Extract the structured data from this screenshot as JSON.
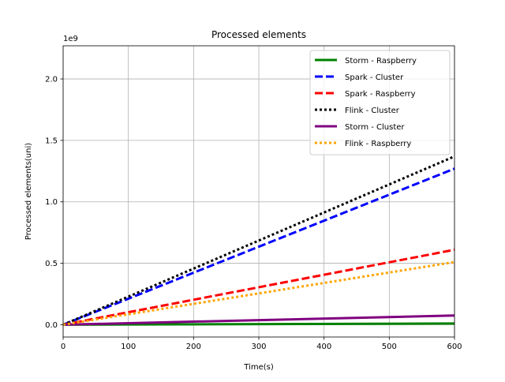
{
  "chart_data": {
    "type": "line",
    "title": "Processed elements",
    "xlabel": "Time(s)",
    "ylabel": "Processed elements(uni)",
    "y_offset_label": "1e9",
    "xlim": [
      0,
      600
    ],
    "ylim": [
      -0.1,
      2.27
    ],
    "xticks": [
      0,
      100,
      200,
      300,
      400,
      500,
      600
    ],
    "yticks": [
      0.0,
      0.5,
      1.0,
      1.5,
      2.0
    ],
    "xtick_labels": [
      "0",
      "100",
      "200",
      "300",
      "400",
      "500",
      "600"
    ],
    "ytick_labels": [
      "0.0",
      "0.5",
      "1.0",
      "1.5",
      "2.0"
    ],
    "grid": true,
    "legend_position": "top-right",
    "series": [
      {
        "name": "Storm - Raspberry",
        "color": "#008000",
        "style": "solid",
        "x": [
          0,
          600
        ],
        "y": [
          0.0,
          0.01
        ]
      },
      {
        "name": "Spark - Cluster",
        "color": "#0000ff",
        "style": "dashed",
        "x": [
          0,
          600
        ],
        "y": [
          0.0,
          1.27
        ]
      },
      {
        "name": "Spark - Raspberry",
        "color": "#ff0000",
        "style": "dashed",
        "x": [
          0,
          600
        ],
        "y": [
          0.0,
          0.61
        ]
      },
      {
        "name": "Flink - Cluster",
        "color": "#000000",
        "style": "dotted",
        "x": [
          0,
          600
        ],
        "y": [
          0.0,
          1.37
        ]
      },
      {
        "name": "Storm - Cluster",
        "color": "#800080",
        "style": "solid",
        "x": [
          0,
          600
        ],
        "y": [
          0.0,
          0.075
        ]
      },
      {
        "name": "Flink - Raspberry",
        "color": "#ffa500",
        "style": "dotted",
        "x": [
          0,
          600
        ],
        "y": [
          0.0,
          0.51
        ]
      }
    ]
  }
}
